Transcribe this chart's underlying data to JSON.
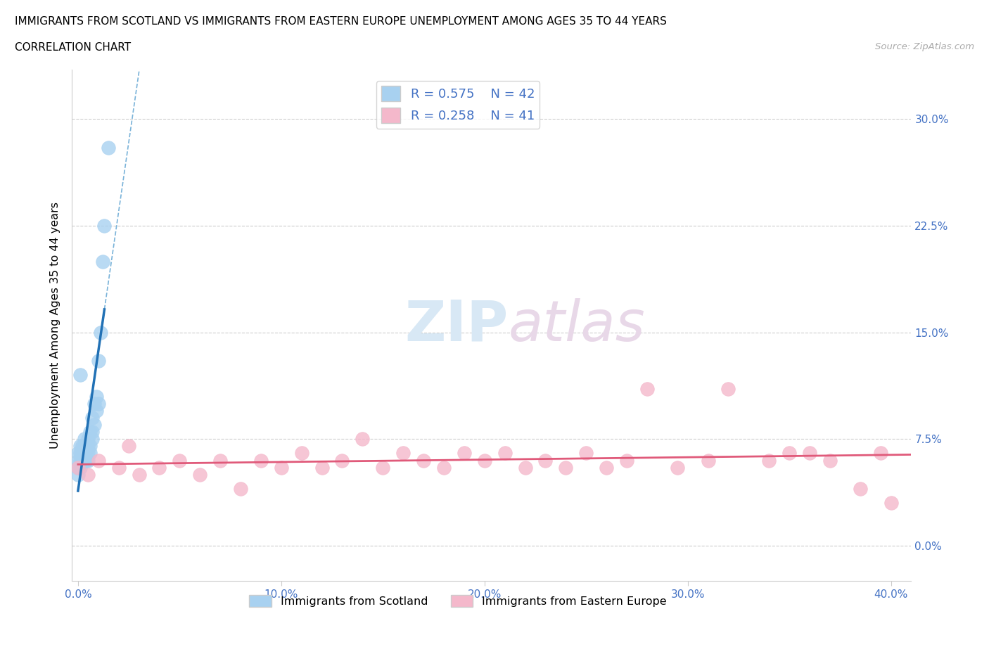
{
  "title_line1": "IMMIGRANTS FROM SCOTLAND VS IMMIGRANTS FROM EASTERN EUROPE UNEMPLOYMENT AMONG AGES 35 TO 44 YEARS",
  "title_line2": "CORRELATION CHART",
  "source": "Source: ZipAtlas.com",
  "ylabel": "Unemployment Among Ages 35 to 44 years",
  "xlim": [
    -0.003,
    0.41
  ],
  "ylim": [
    -0.025,
    0.335
  ],
  "xticks": [
    0.0,
    0.1,
    0.2,
    0.3,
    0.4
  ],
  "xticklabels": [
    "0.0%",
    "10.0%",
    "20.0%",
    "30.0%",
    "40.0%"
  ],
  "yticks": [
    0.0,
    0.075,
    0.15,
    0.225,
    0.3
  ],
  "yticklabels": [
    "0.0%",
    "7.5%",
    "15.0%",
    "22.5%",
    "30.0%"
  ],
  "tick_color": "#4472c4",
  "scotland_color": "#a8d1f0",
  "eastern_europe_color": "#f4b8cb",
  "scotland_line_color": "#2171b5",
  "eastern_europe_line_color": "#e05a7a",
  "dash_color": "#7ab3d9",
  "scotland_R": 0.575,
  "scotland_N": 42,
  "eastern_europe_R": 0.258,
  "eastern_europe_N": 41,
  "background_color": "#ffffff",
  "grid_color": "#cccccc",
  "scotland_x": [
    0.0,
    0.0,
    0.0,
    0.0,
    0.001,
    0.001,
    0.001,
    0.001,
    0.001,
    0.002,
    0.002,
    0.002,
    0.002,
    0.002,
    0.003,
    0.003,
    0.003,
    0.003,
    0.004,
    0.004,
    0.004,
    0.004,
    0.005,
    0.005,
    0.005,
    0.005,
    0.006,
    0.006,
    0.006,
    0.007,
    0.007,
    0.007,
    0.008,
    0.008,
    0.009,
    0.009,
    0.01,
    0.01,
    0.011,
    0.012,
    0.013,
    0.015
  ],
  "scotland_y": [
    0.05,
    0.06,
    0.065,
    0.055,
    0.12,
    0.065,
    0.07,
    0.06,
    0.055,
    0.065,
    0.07,
    0.06,
    0.065,
    0.06,
    0.07,
    0.075,
    0.065,
    0.06,
    0.07,
    0.065,
    0.06,
    0.065,
    0.075,
    0.07,
    0.06,
    0.065,
    0.08,
    0.07,
    0.065,
    0.09,
    0.08,
    0.075,
    0.1,
    0.085,
    0.105,
    0.095,
    0.13,
    0.1,
    0.15,
    0.2,
    0.225,
    0.28
  ],
  "eastern_europe_x": [
    0.0,
    0.005,
    0.01,
    0.02,
    0.025,
    0.03,
    0.04,
    0.05,
    0.06,
    0.07,
    0.08,
    0.09,
    0.1,
    0.11,
    0.12,
    0.13,
    0.14,
    0.15,
    0.16,
    0.17,
    0.18,
    0.19,
    0.2,
    0.21,
    0.22,
    0.23,
    0.24,
    0.25,
    0.26,
    0.27,
    0.28,
    0.295,
    0.31,
    0.32,
    0.34,
    0.35,
    0.36,
    0.37,
    0.385,
    0.395,
    0.4
  ],
  "eastern_europe_y": [
    0.055,
    0.05,
    0.06,
    0.055,
    0.07,
    0.05,
    0.055,
    0.06,
    0.05,
    0.06,
    0.04,
    0.06,
    0.055,
    0.065,
    0.055,
    0.06,
    0.075,
    0.055,
    0.065,
    0.06,
    0.055,
    0.065,
    0.06,
    0.065,
    0.055,
    0.06,
    0.055,
    0.065,
    0.055,
    0.06,
    0.11,
    0.055,
    0.06,
    0.11,
    0.06,
    0.065,
    0.065,
    0.06,
    0.04,
    0.065,
    0.03
  ]
}
